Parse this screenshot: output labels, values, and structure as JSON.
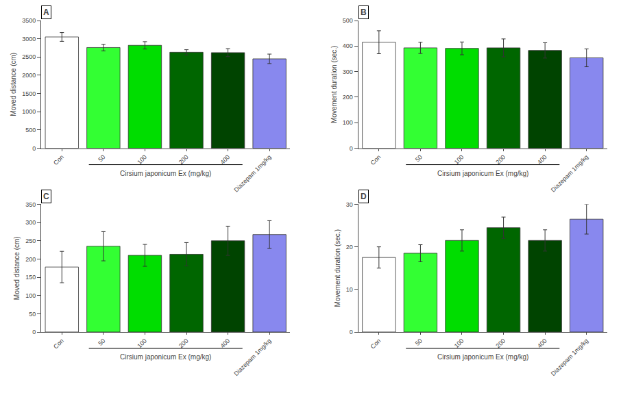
{
  "chart_data": [
    {
      "type": "bar",
      "title": "A",
      "ylabel": "Moved distance (cm)",
      "xlabel": "Cirsium japonicum Ex (mg/kg)",
      "categories": [
        "Con",
        "50",
        "100",
        "200",
        "400",
        "Diazepam 1mg/kg"
      ],
      "values": [
        3050,
        2760,
        2820,
        2630,
        2620,
        2450
      ],
      "errors": [
        120,
        90,
        100,
        70,
        110,
        130
      ],
      "colors": [
        "#ffffff",
        "#33ff33",
        "#00dd00",
        "#006600",
        "#004400",
        "#8888ee"
      ],
      "ylim": [
        0,
        3500
      ],
      "yticks": [
        0,
        500,
        1000,
        1500,
        2000,
        2500,
        3000,
        3500
      ],
      "grid": false
    },
    {
      "type": "bar",
      "title": "B",
      "ylabel": "Movement duration (sec.)",
      "xlabel": "Cirsium japonicum Ex (mg/kg)",
      "categories": [
        "Con",
        "50",
        "100",
        "200",
        "400",
        "Diazepam 1mg/kg"
      ],
      "values": [
        415,
        393,
        391,
        393,
        383,
        354
      ],
      "errors": [
        45,
        22,
        25,
        35,
        30,
        35
      ],
      "colors": [
        "#ffffff",
        "#33ff33",
        "#00dd00",
        "#006600",
        "#004400",
        "#8888ee"
      ],
      "ylim": [
        0,
        500
      ],
      "yticks": [
        0,
        100,
        200,
        300,
        400,
        500
      ],
      "grid": false
    },
    {
      "type": "bar",
      "title": "C",
      "ylabel": "Moved distance (cm)",
      "xlabel": "Cirsium japonicum Ex (mg/kg)",
      "categories": [
        "Con",
        "50",
        "100",
        "200",
        "400",
        "Diazepam 1mg/kg"
      ],
      "values": [
        178,
        235,
        210,
        213,
        250,
        267
      ],
      "errors": [
        43,
        40,
        30,
        32,
        40,
        38
      ],
      "colors": [
        "#ffffff",
        "#33ff33",
        "#00dd00",
        "#006600",
        "#004400",
        "#8888ee"
      ],
      "ylim": [
        0,
        350
      ],
      "yticks": [
        0,
        50,
        100,
        150,
        200,
        250,
        300,
        350
      ],
      "grid": false
    },
    {
      "type": "bar",
      "title": "D",
      "ylabel": "Movement duration (sec.)",
      "xlabel": "Cirsium japonicum Ex (mg/kg)",
      "categories": [
        "Con",
        "50",
        "100",
        "200",
        "400",
        "Diazepam 1mg/kg"
      ],
      "values": [
        17.5,
        18.5,
        21.5,
        24.5,
        21.5,
        26.5
      ],
      "errors": [
        2.5,
        2.0,
        2.5,
        2.5,
        2.5,
        3.5
      ],
      "colors": [
        "#ffffff",
        "#33ff33",
        "#00dd00",
        "#006600",
        "#004400",
        "#8888ee"
      ],
      "ylim": [
        0,
        30
      ],
      "yticks": [
        0,
        10,
        20,
        30
      ],
      "grid": false
    }
  ]
}
